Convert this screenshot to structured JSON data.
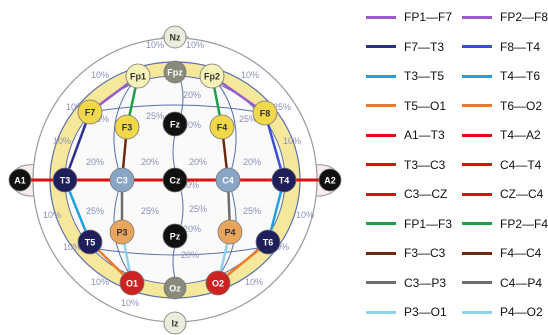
{
  "colors": {
    "head_fill": "#ffffff",
    "outer_ring": "#f6e89a",
    "inner_area": "#fafafa",
    "grid": "#5a6fb0",
    "percent_text": "#8a8fb8",
    "head_outline": "#9a9a9a"
  },
  "electrodes": [
    {
      "label": "Nz",
      "fill": "#ececdc",
      "text": "#333333"
    },
    {
      "label": "Fpz",
      "fill": "#8a8a7a",
      "text": "#ffffff"
    },
    {
      "label": "Fp1",
      "fill": "#f7f3b8",
      "text": "#333333"
    },
    {
      "label": "Fp2",
      "fill": "#f7f3b8",
      "text": "#333333"
    },
    {
      "label": "F7",
      "fill": "#f1d84a",
      "text": "#333333"
    },
    {
      "label": "F3",
      "fill": "#f1d84a",
      "text": "#333333"
    },
    {
      "label": "Fz",
      "fill": "#111111",
      "text": "#ffffff"
    },
    {
      "label": "F4",
      "fill": "#f1d84a",
      "text": "#333333"
    },
    {
      "label": "F8",
      "fill": "#f1d84a",
      "text": "#333333"
    },
    {
      "label": "A1",
      "fill": "#111111",
      "text": "#ffffff"
    },
    {
      "label": "T3",
      "fill": "#1f1f5c",
      "text": "#ffffff"
    },
    {
      "label": "C3",
      "fill": "#8aa6c6",
      "text": "#ffffff"
    },
    {
      "label": "Cz",
      "fill": "#111111",
      "text": "#ffffff"
    },
    {
      "label": "C4",
      "fill": "#8aa6c6",
      "text": "#ffffff"
    },
    {
      "label": "T4",
      "fill": "#1f1f5c",
      "text": "#ffffff"
    },
    {
      "label": "A2",
      "fill": "#111111",
      "text": "#ffffff"
    },
    {
      "label": "T5",
      "fill": "#1f1f5c",
      "text": "#ffffff"
    },
    {
      "label": "P3",
      "fill": "#eaa55c",
      "text": "#333333"
    },
    {
      "label": "Pz",
      "fill": "#111111",
      "text": "#ffffff"
    },
    {
      "label": "P4",
      "fill": "#eaa55c",
      "text": "#333333"
    },
    {
      "label": "T6",
      "fill": "#1f1f5c",
      "text": "#ffffff"
    },
    {
      "label": "O1",
      "fill": "#cc2222",
      "text": "#ffffff"
    },
    {
      "label": "Oz",
      "fill": "#8a8a7a",
      "text": "#ffffff"
    },
    {
      "label": "O2",
      "fill": "#cc2222",
      "text": "#ffffff"
    },
    {
      "label": "Iz",
      "fill": "#ececdc",
      "text": "#333333"
    }
  ],
  "percent_labels": [
    "10%",
    "10%",
    "10%",
    "20%",
    "10%",
    "10%",
    "25%",
    "25%",
    "20%",
    "25%",
    "25%",
    "10%",
    "10%",
    "20%",
    "20%",
    "20%",
    "20%",
    "20%",
    "10%",
    "10%",
    "25%",
    "25%",
    "20%",
    "25%",
    "25%",
    "10%",
    "10%",
    "20%",
    "10%",
    "10%",
    "10%"
  ],
  "legend": [
    {
      "label": "FP1—F7",
      "color": "#9b59d0"
    },
    {
      "label": "FP2—F8",
      "color": "#9b59d0"
    },
    {
      "label": "F7—T3",
      "color": "#2a2f8f"
    },
    {
      "label": "F8—T4",
      "color": "#3a4fd0"
    },
    {
      "label": "T3—T5",
      "color": "#1fa0e0"
    },
    {
      "label": "T4—T6",
      "color": "#1fa0e0"
    },
    {
      "label": "T5—O1",
      "color": "#f07a2a"
    },
    {
      "label": "T6—O2",
      "color": "#f07a2a"
    },
    {
      "label": "A1—T3",
      "color": "#e01010"
    },
    {
      "label": "T4—A2",
      "color": "#e01010"
    },
    {
      "label": "T3—C3",
      "color": "#e01010"
    },
    {
      "label": "C4—T4",
      "color": "#e01010"
    },
    {
      "label": "C3—CZ",
      "color": "#e01010"
    },
    {
      "label": "CZ—C4",
      "color": "#e01010"
    },
    {
      "label": "FP1—F3",
      "color": "#1f9e4a"
    },
    {
      "label": "FP2—F4",
      "color": "#1f9e4a"
    },
    {
      "label": "F3—C3",
      "color": "#6b2a10"
    },
    {
      "label": "F4—C4",
      "color": "#6b2a10"
    },
    {
      "label": "C3—P3",
      "color": "#6e6e6e"
    },
    {
      "label": "C4—P4",
      "color": "#6e6e6e"
    },
    {
      "label": "P3—O1",
      "color": "#8fd0ea"
    },
    {
      "label": "P4—O2",
      "color": "#8fd0ea"
    }
  ]
}
